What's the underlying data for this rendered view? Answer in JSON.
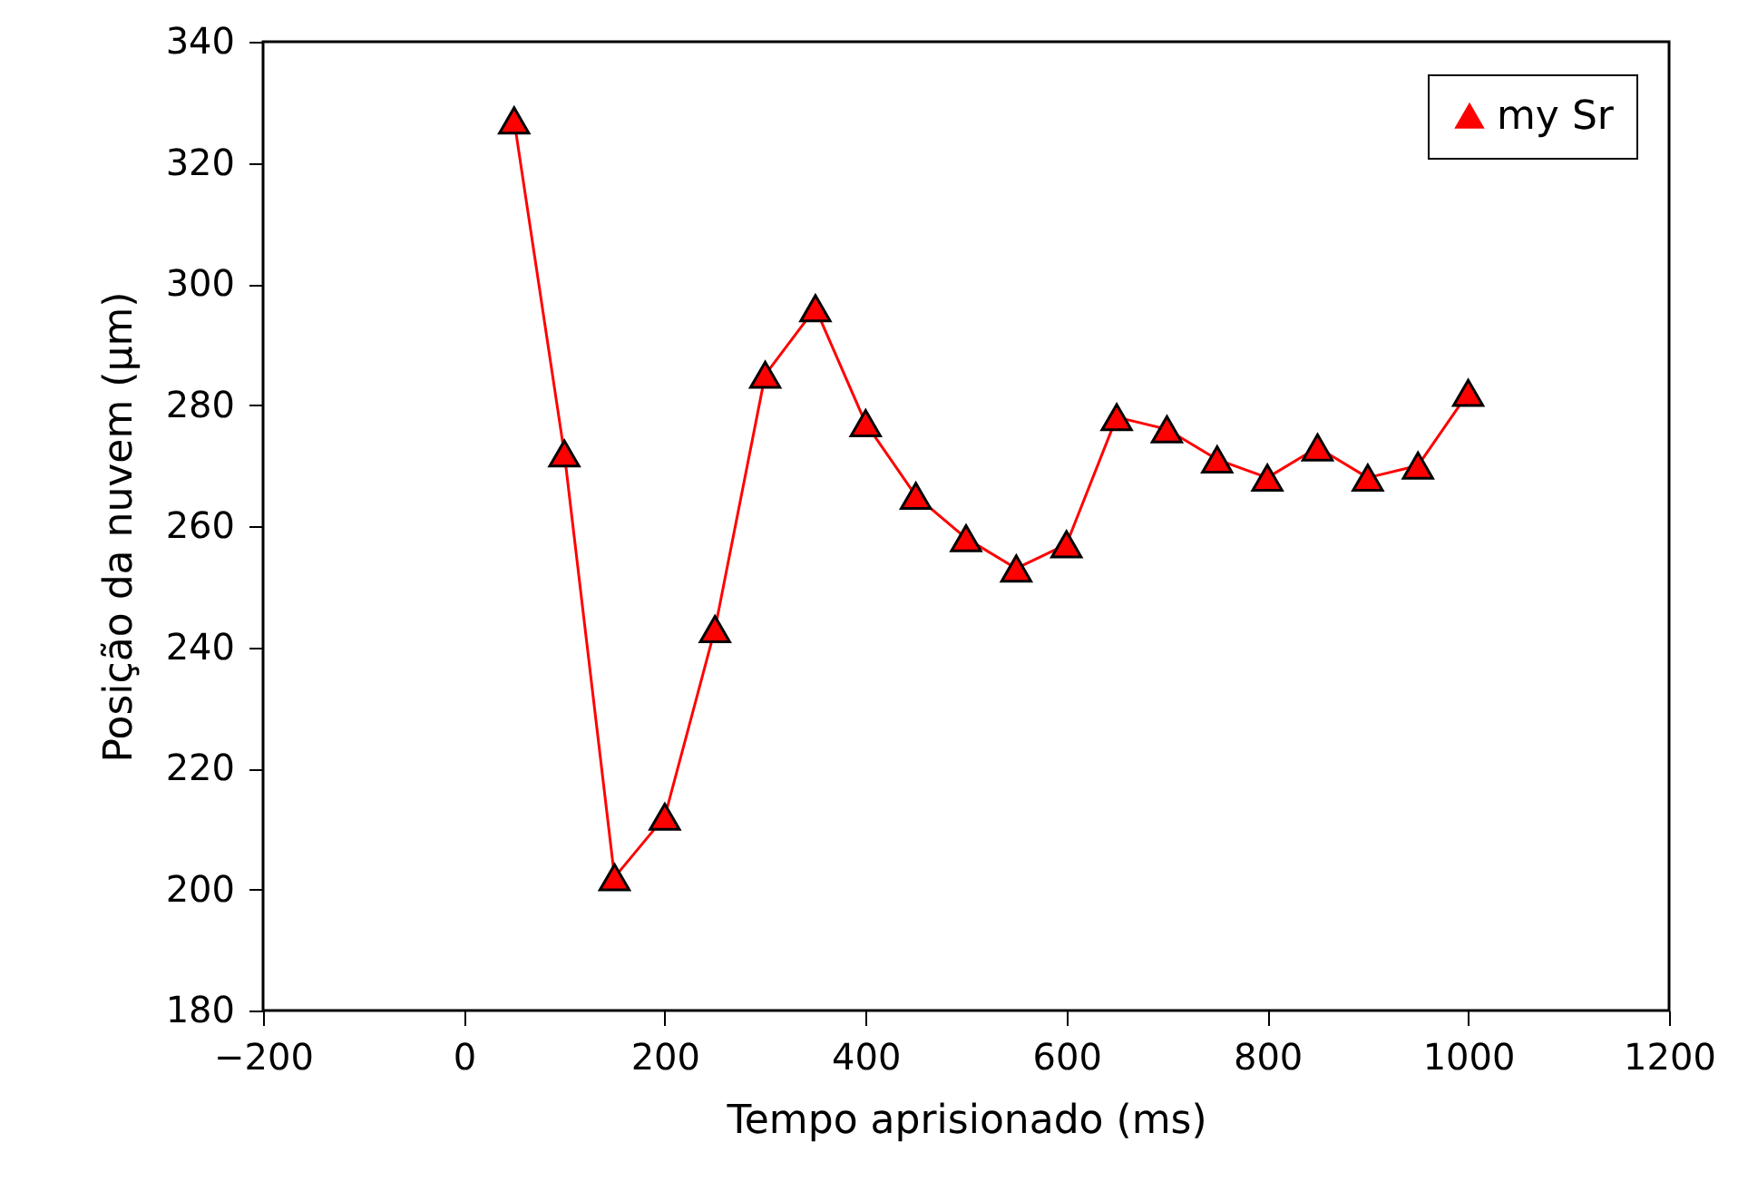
{
  "chart_data": {
    "type": "line",
    "xlabel": "Tempo aprisionado (ms)",
    "ylabel": "Posição da nuvem (μm)",
    "x": [
      50,
      100,
      150,
      200,
      250,
      300,
      350,
      400,
      450,
      500,
      550,
      600,
      650,
      700,
      750,
      800,
      850,
      900,
      950,
      1000
    ],
    "series": [
      {
        "name": "my Sr",
        "color": "#ff0000",
        "values": [
          327,
          272,
          202,
          212,
          243,
          285,
          296,
          277,
          265,
          258,
          253,
          257,
          278,
          276,
          271,
          268,
          273,
          268,
          270,
          282
        ]
      }
    ],
    "xlim": [
      -200,
      1200
    ],
    "xticks": [
      {
        "value": -200,
        "label": "−200"
      },
      0,
      200,
      400,
      600,
      800,
      1000,
      1200
    ],
    "ylim": [
      180,
      340
    ],
    "yticks": [
      180,
      200,
      220,
      240,
      260,
      280,
      300,
      320,
      340
    ],
    "marker": "triangle",
    "line_style": "solid",
    "legend": "top right",
    "grid": false
  }
}
